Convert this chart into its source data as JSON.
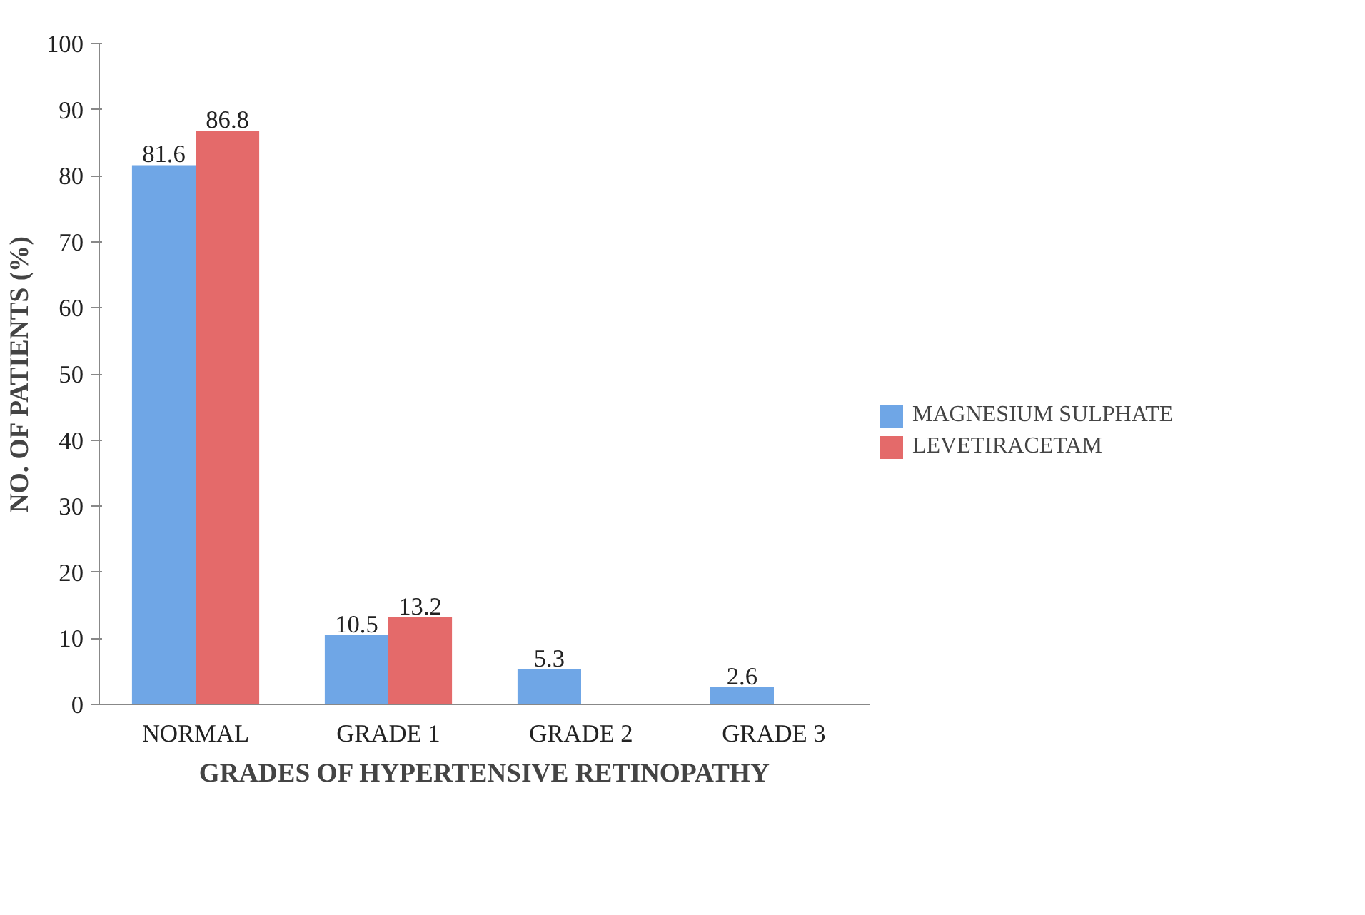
{
  "chart_data": {
    "type": "bar",
    "xlabel": "GRADES OF HYPERTENSIVE RETINOPATHY",
    "ylabel": "NO. OF PATIENTS (%)",
    "categories": [
      "NORMAL",
      "GRADE 1",
      "GRADE 2",
      "GRADE 3"
    ],
    "series": [
      {
        "name": "MAGNESIUM SULPHATE",
        "color": "#6fa6e6",
        "values": [
          81.6,
          10.5,
          5.3,
          2.6
        ]
      },
      {
        "name": "LEVETIRACETAM",
        "color": "#e46a6a",
        "values": [
          86.8,
          13.2,
          null,
          null
        ]
      }
    ],
    "ylim": [
      0,
      100
    ],
    "yticks": [
      0,
      10,
      20,
      30,
      40,
      50,
      60,
      70,
      80,
      90,
      100
    ],
    "data_labels": true,
    "grid": false,
    "legend": "right"
  }
}
